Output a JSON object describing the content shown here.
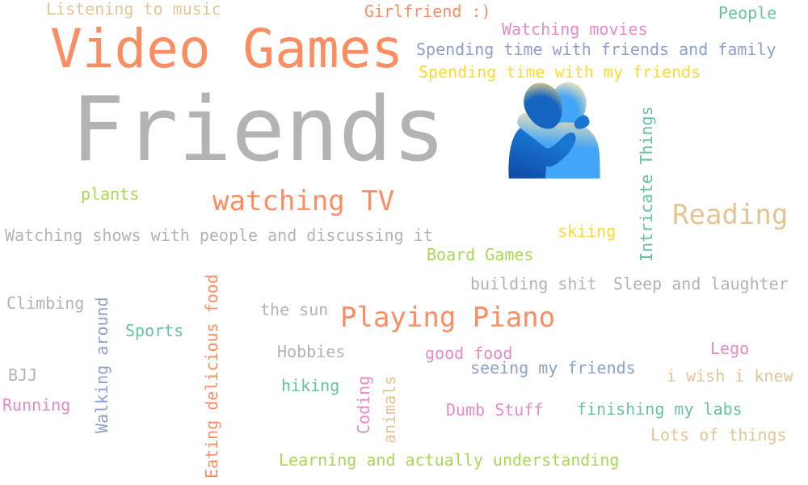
{
  "colors": {
    "background": "#ffffff",
    "gray": "#b3b3b3",
    "orange": "#fc8d62",
    "blue": "#8da0cb",
    "pink": "#e78ac3",
    "green": "#a6d854",
    "yellow": "#ffd92f",
    "tan": "#e5c494",
    "teal": "#66c2a5"
  },
  "words": [
    {
      "text": "Friends 🫂",
      "color": "#b3b3b3"
    },
    {
      "text": "Video Games",
      "color": "#fc8d62"
    },
    {
      "text": "watching TV",
      "color": "#fc8d62"
    },
    {
      "text": "Reading",
      "color": "#e5c494"
    },
    {
      "text": "Playing Piano",
      "color": "#fc8d62"
    },
    {
      "text": "Listening to music",
      "color": "#e5c494"
    },
    {
      "text": "Girlfriend :)",
      "color": "#fc8d62"
    },
    {
      "text": "People",
      "color": "#66c2a5"
    },
    {
      "text": "Watching movies",
      "color": "#e78ac3"
    },
    {
      "text": "Spending time with friends and family",
      "color": "#8da0cb"
    },
    {
      "text": "Spending time with my friends",
      "color": "#ffd92f"
    },
    {
      "text": "Intricate Things",
      "color": "#66c2a5"
    },
    {
      "text": "plants",
      "color": "#a6d854"
    },
    {
      "text": "skiing",
      "color": "#ffd92f"
    },
    {
      "text": "Watching shows with people and discussing it",
      "color": "#b3b3b3"
    },
    {
      "text": "Board Games",
      "color": "#a6d854"
    },
    {
      "text": "building shit",
      "color": "#b3b3b3"
    },
    {
      "text": "Sleep and laughter",
      "color": "#b3b3b3"
    },
    {
      "text": "Climbing",
      "color": "#b3b3b3"
    },
    {
      "text": "Walking around",
      "color": "#8da0cb"
    },
    {
      "text": "Eating delicious food",
      "color": "#fc8d62"
    },
    {
      "text": "the sun",
      "color": "#b3b3b3"
    },
    {
      "text": "Sports",
      "color": "#66c2a5"
    },
    {
      "text": "Hobbies",
      "color": "#b3b3b3"
    },
    {
      "text": "good food",
      "color": "#e78ac3"
    },
    {
      "text": "Lego",
      "color": "#e78ac3"
    },
    {
      "text": "seeing my friends",
      "color": "#8da0cb"
    },
    {
      "text": "BJJ",
      "color": "#b3b3b3"
    },
    {
      "text": "hiking",
      "color": "#66c2a5"
    },
    {
      "text": "i wish i knew",
      "color": "#e5c494"
    },
    {
      "text": "Running",
      "color": "#e78ac3"
    },
    {
      "text": "Coding",
      "color": "#e78ac3"
    },
    {
      "text": "animals",
      "color": "#e5c494"
    },
    {
      "text": "Dumb Stuff",
      "color": "#e78ac3"
    },
    {
      "text": "finishing my labs",
      "color": "#66c2a5"
    },
    {
      "text": "Lots of things",
      "color": "#e5c494"
    },
    {
      "text": "Learning and actually understanding",
      "color": "#a6d854"
    }
  ]
}
